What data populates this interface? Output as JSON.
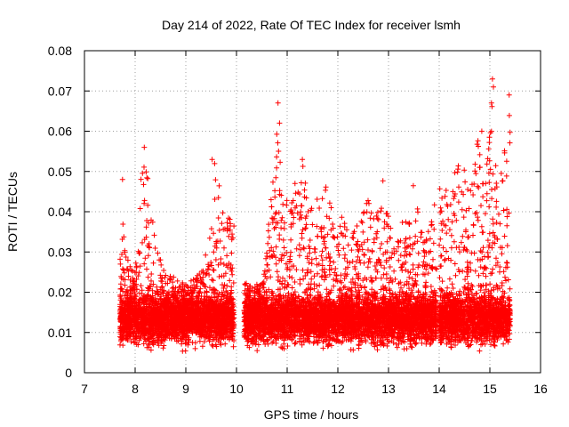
{
  "chart_data": {
    "type": "scatter",
    "title": "Day 214 of 2022, Rate Of TEC Index for receiver lsmh",
    "xlabel": "GPS time / hours",
    "ylabel": "ROTI / TECUs",
    "xlim": [
      7,
      16
    ],
    "ylim": [
      0,
      0.08
    ],
    "xticks": [
      "7",
      "8",
      "9",
      "10",
      "11",
      "12",
      "13",
      "14",
      "15",
      "16"
    ],
    "yticks": [
      "0",
      "0.01",
      "0.02",
      "0.03",
      "0.04",
      "0.05",
      "0.06",
      "0.07",
      "0.08"
    ],
    "grid": true,
    "marker": "plus",
    "color": "#ff0000",
    "segments": [
      {
        "x_start": 7.7,
        "x_end": 9.95
      },
      {
        "x_start": 10.15,
        "x_end": 13.95
      },
      {
        "x_start": 14.0,
        "x_end": 15.4
      }
    ],
    "baseline_range": [
      0.005,
      0.02
    ],
    "envelope": [
      [
        7.7,
        0.048
      ],
      [
        7.8,
        0.03
      ],
      [
        8.0,
        0.025
      ],
      [
        8.1,
        0.047
      ],
      [
        8.2,
        0.055
      ],
      [
        8.4,
        0.032
      ],
      [
        8.6,
        0.025
      ],
      [
        9.0,
        0.022
      ],
      [
        9.3,
        0.025
      ],
      [
        9.5,
        0.035
      ],
      [
        9.55,
        0.053
      ],
      [
        9.8,
        0.04
      ],
      [
        9.95,
        0.042
      ],
      [
        10.2,
        0.022
      ],
      [
        10.5,
        0.023
      ],
      [
        10.7,
        0.046
      ],
      [
        10.8,
        0.067
      ],
      [
        10.9,
        0.045
      ],
      [
        11.1,
        0.045
      ],
      [
        11.3,
        0.053
      ],
      [
        11.5,
        0.04
      ],
      [
        11.7,
        0.047
      ],
      [
        11.9,
        0.045
      ],
      [
        12.1,
        0.038
      ],
      [
        12.3,
        0.035
      ],
      [
        12.5,
        0.04
      ],
      [
        12.6,
        0.045
      ],
      [
        12.8,
        0.04
      ],
      [
        12.9,
        0.049
      ],
      [
        13.1,
        0.035
      ],
      [
        13.3,
        0.04
      ],
      [
        13.5,
        0.049
      ],
      [
        13.7,
        0.032
      ],
      [
        13.9,
        0.042
      ],
      [
        14.0,
        0.049
      ],
      [
        14.2,
        0.045
      ],
      [
        14.4,
        0.054
      ],
      [
        14.6,
        0.048
      ],
      [
        14.8,
        0.06
      ],
      [
        14.9,
        0.045
      ],
      [
        15.05,
        0.073
      ],
      [
        15.15,
        0.045
      ],
      [
        15.3,
        0.056
      ],
      [
        15.38,
        0.069
      ]
    ],
    "notable_points": [
      {
        "x": 7.75,
        "y": 0.048
      },
      {
        "x": 8.18,
        "y": 0.056
      },
      {
        "x": 9.52,
        "y": 0.053
      },
      {
        "x": 10.82,
        "y": 0.067
      },
      {
        "x": 10.85,
        "y": 0.062
      },
      {
        "x": 11.3,
        "y": 0.053
      },
      {
        "x": 14.84,
        "y": 0.06
      },
      {
        "x": 15.05,
        "y": 0.073
      },
      {
        "x": 15.07,
        "y": 0.071
      },
      {
        "x": 15.38,
        "y": 0.069
      }
    ]
  }
}
